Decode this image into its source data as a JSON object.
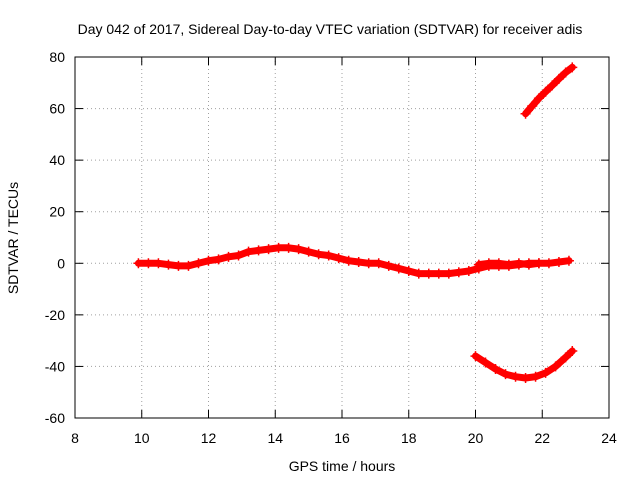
{
  "chart_data": {
    "type": "scatter",
    "title": "Day 042 of 2017, Sidereal Day-to-day VTEC variation (SDTVAR) for receiver adis",
    "xlabel": "GPS time / hours",
    "ylabel": "SDTVAR / TECUs",
    "xlim": [
      8,
      24
    ],
    "ylim": [
      -60,
      80
    ],
    "xticks": [
      8,
      10,
      12,
      14,
      16,
      18,
      20,
      22,
      24
    ],
    "yticks": [
      -60,
      -40,
      -20,
      0,
      20,
      40,
      60,
      80
    ],
    "grid": true,
    "legend": "none",
    "marker": "+",
    "series": [
      {
        "name": "main-track",
        "color": "#ff0000",
        "x": [
          9.9,
          10.2,
          10.5,
          10.8,
          11.1,
          11.4,
          11.7,
          12.0,
          12.3,
          12.6,
          12.9,
          13.2,
          13.5,
          13.8,
          14.1,
          14.4,
          14.7,
          15.0,
          15.3,
          15.6,
          15.9,
          16.2,
          16.5,
          16.8,
          17.1,
          17.4,
          17.7,
          18.0,
          18.3,
          18.6,
          18.9,
          19.2,
          19.5,
          19.8,
          20.1,
          20.4,
          20.7,
          21.0,
          21.3,
          21.6,
          21.9,
          22.2,
          22.5,
          22.8
        ],
        "y": [
          0,
          0,
          0,
          -0.5,
          -1,
          -1,
          0,
          1,
          1.5,
          2.5,
          3,
          4.5,
          5,
          5.5,
          6,
          6,
          5.5,
          4.5,
          3.5,
          3,
          2,
          1,
          0.5,
          0,
          0,
          -1,
          -2,
          -3,
          -4,
          -4,
          -4,
          -4,
          -3.5,
          -3,
          -2,
          -1,
          -1,
          -1,
          -0.5,
          0,
          0,
          0,
          0.5,
          1
        ]
      },
      {
        "name": "secondary-track",
        "color": "#ff0000",
        "x": [
          20.1,
          20.4,
          20.7,
          21.0,
          21.3,
          21.6,
          21.9
        ],
        "y": [
          -0.5,
          0,
          0,
          -0.5,
          0,
          -0.5,
          0
        ]
      },
      {
        "name": "upper-arc",
        "color": "#ff0000",
        "x": [
          21.5,
          21.7,
          21.9,
          22.1,
          22.3,
          22.5,
          22.7,
          22.9
        ],
        "y": [
          58,
          61,
          64,
          66.5,
          69,
          71.5,
          74,
          76
        ]
      },
      {
        "name": "lower-arc",
        "color": "#ff0000",
        "x": [
          20.0,
          20.3,
          20.6,
          20.9,
          21.2,
          21.5,
          21.8,
          22.1,
          22.4,
          22.7,
          22.9
        ],
        "y": [
          -36,
          -38.5,
          -41,
          -43,
          -44,
          -44.5,
          -44,
          -42.5,
          -40,
          -36.5,
          -34
        ]
      }
    ]
  }
}
